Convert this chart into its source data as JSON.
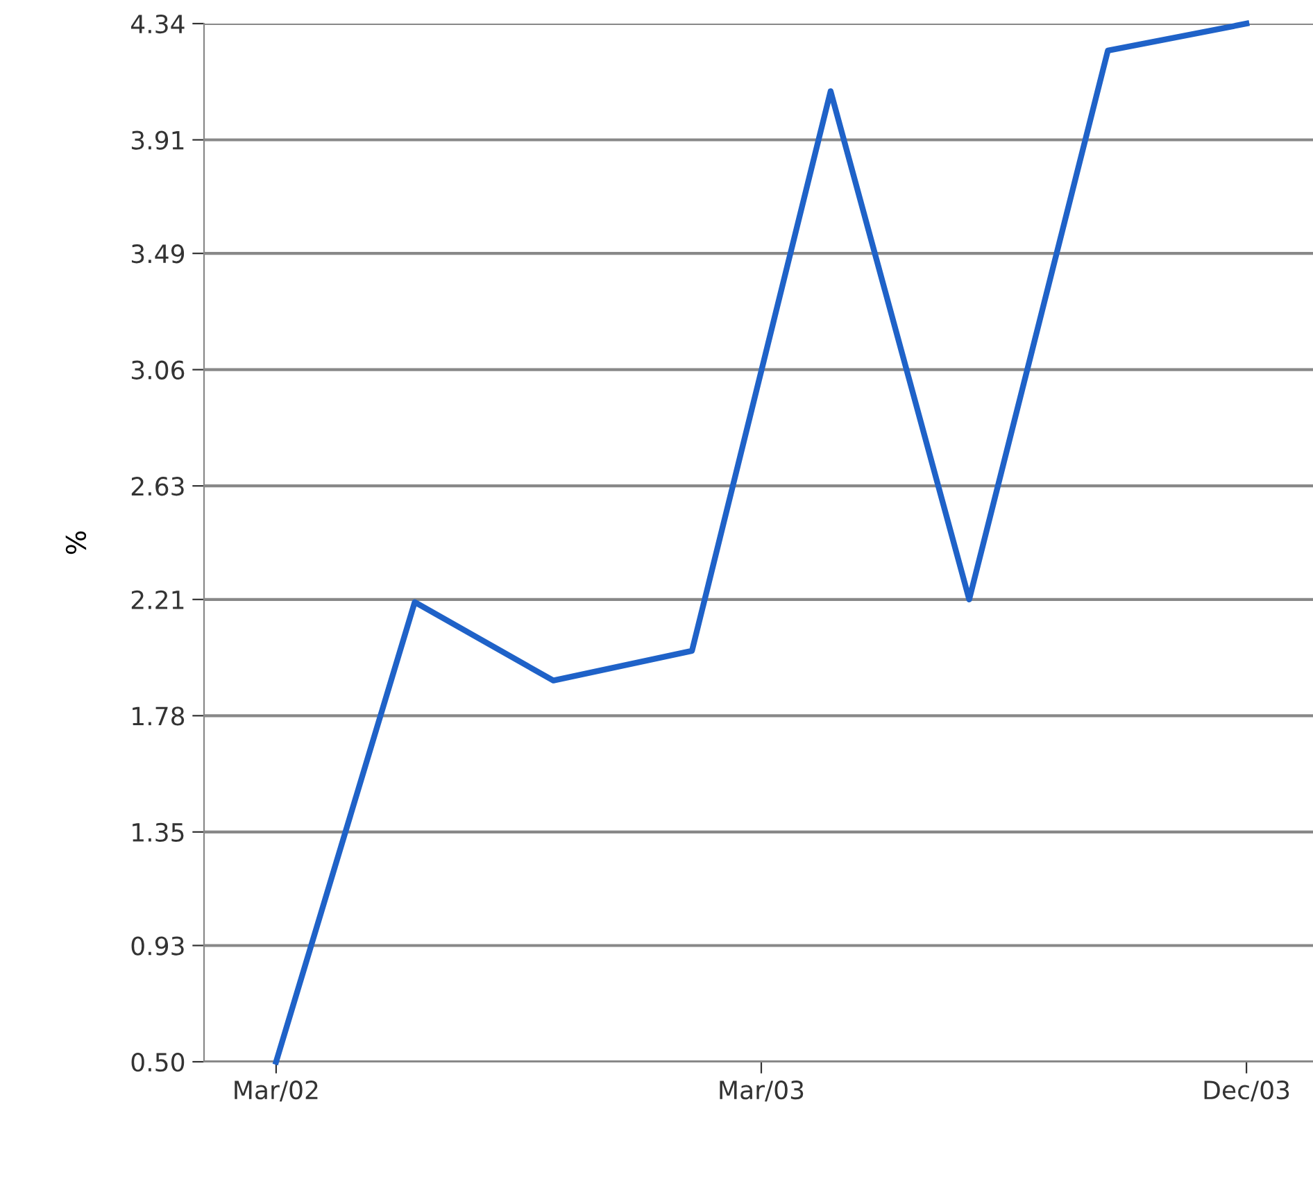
{
  "chart_data": {
    "type": "line",
    "ylabel": "%",
    "categories": [
      "Mar/02",
      null,
      null,
      null,
      null,
      null,
      null,
      "Mar/03",
      null,
      null,
      null,
      null,
      null,
      null,
      "Dec/03"
    ],
    "series": [
      {
        "color": "#1f62c8",
        "values": [
          0.5,
          null,
          2.2,
          null,
          1.91,
          null,
          2.02,
          null,
          4.09,
          null,
          2.21,
          null,
          4.24,
          null,
          4.34
        ]
      }
    ],
    "ylim": [
      0.5,
      4.34
    ],
    "yticks": [
      {
        "value": 0.5,
        "label": "0.50"
      },
      {
        "value": 0.93,
        "label": "0.93"
      },
      {
        "value": 1.35,
        "label": "1.35"
      },
      {
        "value": 1.78,
        "label": "1.78"
      },
      {
        "value": 2.21,
        "label": "2.21"
      },
      {
        "value": 2.63,
        "label": "2.63"
      },
      {
        "value": 3.06,
        "label": "3.06"
      },
      {
        "value": 3.49,
        "label": "3.49"
      },
      {
        "value": 3.91,
        "label": "3.91"
      },
      {
        "value": 4.34,
        "label": "4.34"
      }
    ],
    "grid": "y",
    "marker": "none",
    "line_style": "solid"
  }
}
